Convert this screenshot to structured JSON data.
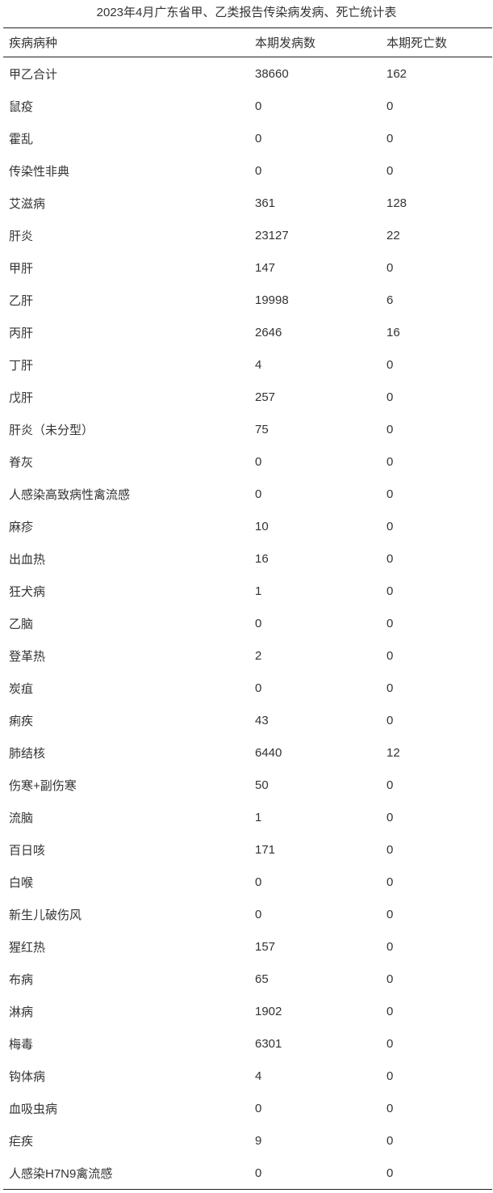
{
  "title": "2023年4月广东省甲、乙类报告传染病发病、死亡统计表",
  "columns": [
    "疾病病种",
    "本期发病数",
    "本期死亡数"
  ],
  "rows": [
    [
      "甲乙合计",
      "38660",
      "162"
    ],
    [
      "鼠疫",
      "0",
      "0"
    ],
    [
      "霍乱",
      "0",
      "0"
    ],
    [
      "传染性非典",
      "0",
      "0"
    ],
    [
      "艾滋病",
      "361",
      "128"
    ],
    [
      "肝炎",
      "23127",
      "22"
    ],
    [
      "甲肝",
      "147",
      "0"
    ],
    [
      "乙肝",
      "19998",
      "6"
    ],
    [
      "丙肝",
      "2646",
      "16"
    ],
    [
      "丁肝",
      "4",
      "0"
    ],
    [
      "戊肝",
      "257",
      "0"
    ],
    [
      "肝炎（未分型）",
      "75",
      "0"
    ],
    [
      "脊灰",
      "0",
      "0"
    ],
    [
      "人感染高致病性禽流感",
      "0",
      "0"
    ],
    [
      "麻疹",
      "10",
      "0"
    ],
    [
      "出血热",
      "16",
      "0"
    ],
    [
      "狂犬病",
      "1",
      "0"
    ],
    [
      "乙脑",
      "0",
      "0"
    ],
    [
      "登革热",
      "2",
      "0"
    ],
    [
      "炭疽",
      "0",
      "0"
    ],
    [
      "痢疾",
      "43",
      "0"
    ],
    [
      "肺结核",
      "6440",
      "12"
    ],
    [
      "伤寒+副伤寒",
      "50",
      "0"
    ],
    [
      "流脑",
      "1",
      "0"
    ],
    [
      "百日咳",
      "171",
      "0"
    ],
    [
      "白喉",
      "0",
      "0"
    ],
    [
      "新生儿破伤风",
      "0",
      "0"
    ],
    [
      "猩红热",
      "157",
      "0"
    ],
    [
      "布病",
      "65",
      "0"
    ],
    [
      "淋病",
      "1902",
      "0"
    ],
    [
      "梅毒",
      "6301",
      "0"
    ],
    [
      "钩体病",
      "4",
      "0"
    ],
    [
      "血吸虫病",
      "0",
      "0"
    ],
    [
      "疟疾",
      "9",
      "0"
    ],
    [
      "人感染H7N9禽流感",
      "0",
      "0"
    ]
  ]
}
